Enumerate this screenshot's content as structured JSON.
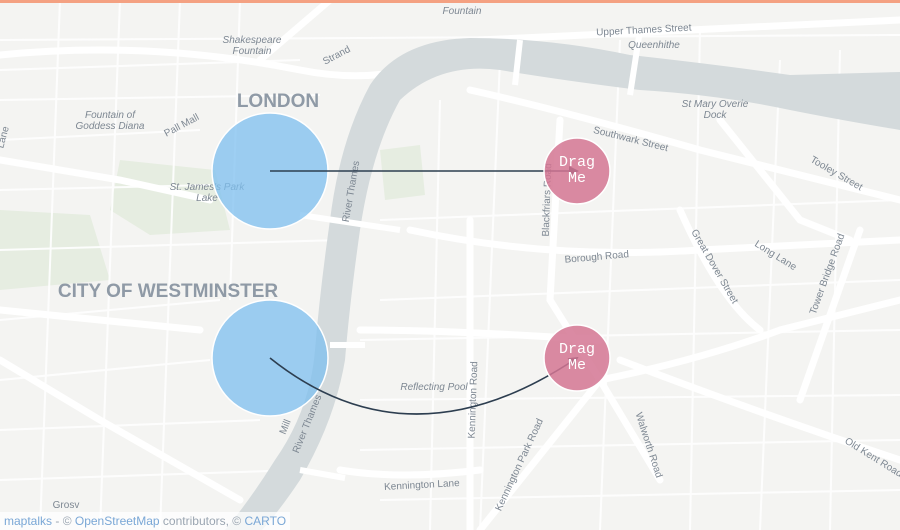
{
  "map": {
    "area_labels": [
      {
        "id": "london",
        "text": "LONDON"
      },
      {
        "id": "westminster",
        "text": "CITY OF WESTMINSTER"
      }
    ],
    "street_labels": [
      {
        "id": "fountain-top",
        "text": "Fountain"
      },
      {
        "id": "shakespeare-1",
        "text": "Shakespeare"
      },
      {
        "id": "shakespeare-2",
        "text": "Fountain"
      },
      {
        "id": "strand",
        "text": "Strand"
      },
      {
        "id": "upper-thames",
        "text": "Upper Thames Street"
      },
      {
        "id": "queenhithe",
        "text": "Queenhithe"
      },
      {
        "id": "fountain-goddess-1",
        "text": "Fountain of"
      },
      {
        "id": "fountain-goddess-2",
        "text": "Goddess Diana"
      },
      {
        "id": "pall-mall",
        "text": "Pall Mall"
      },
      {
        "id": "st-marys-1",
        "text": "St Mary Overie"
      },
      {
        "id": "st-marys-2",
        "text": "Dock"
      },
      {
        "id": "southwark",
        "text": "Southwark Street"
      },
      {
        "id": "tooley",
        "text": "Tooley Street"
      },
      {
        "id": "st-james-1",
        "text": "St. James's Park"
      },
      {
        "id": "st-james-2",
        "text": "Lake"
      },
      {
        "id": "river-thames-1",
        "text": "River Thames"
      },
      {
        "id": "blackfriars",
        "text": "Blackfriars Road"
      },
      {
        "id": "great-dover",
        "text": "Great Dover Street"
      },
      {
        "id": "long-lane",
        "text": "Long Lane"
      },
      {
        "id": "tower-bridge",
        "text": "Tower Bridge Road"
      },
      {
        "id": "borough",
        "text": "Borough Road"
      },
      {
        "id": "reflecting",
        "text": "Reflecting Pool"
      },
      {
        "id": "kennington-road",
        "text": "Kennington Road"
      },
      {
        "id": "kennington-park",
        "text": "Kennington Park Road"
      },
      {
        "id": "walworth",
        "text": "Walworth Road"
      },
      {
        "id": "old-kent",
        "text": "Old Kent Road"
      },
      {
        "id": "river-thames-2",
        "text": "River Thames"
      },
      {
        "id": "kennington-lane",
        "text": "Kennington Lane"
      },
      {
        "id": "lane-left",
        "text": "Lane"
      },
      {
        "id": "mill",
        "text": "Mill"
      },
      {
        "id": "grosv",
        "text": "Grosv"
      }
    ]
  },
  "markers": {
    "drag_me_1": "Drag\nMe",
    "drag_me_2": "Drag\nMe"
  },
  "attribution": {
    "lib": "maptalks",
    "sep": " - © ",
    "osm": "OpenStreetMap",
    "contrib": " contributors, © ",
    "carto": "CARTO"
  },
  "colors": {
    "background": "#f4f4f2",
    "water": "#d4dadc",
    "park": "#e6ede1",
    "road": "#ffffff",
    "source_circle": "#7dbfef",
    "target_circle": "#d47693",
    "connector": "#2d3e50",
    "top_bar": "#f4a182"
  }
}
